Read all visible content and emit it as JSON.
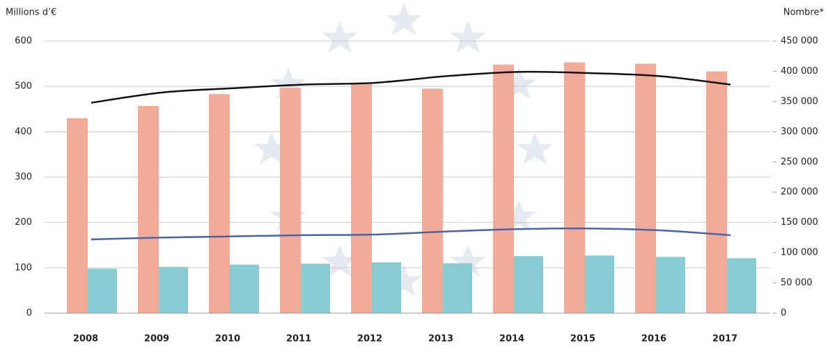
{
  "chart_data": {
    "type": "bar-line",
    "ylabel": "Millions d’€",
    "y2label": "Nombre*",
    "categories": [
      "2008",
      "2009",
      "2010",
      "2011",
      "2012",
      "2013",
      "2014",
      "2015",
      "2016",
      "2017"
    ],
    "ylim": [
      0,
      600
    ],
    "yticks": [
      0,
      100,
      200,
      300,
      400,
      500,
      600
    ],
    "y2lim": [
      0,
      450000
    ],
    "y2ticks": [
      {
        "value": 0,
        "label": "0"
      },
      {
        "value": 50000,
        "label": "50 000"
      },
      {
        "value": 100000,
        "label": "100 000"
      },
      {
        "value": 150000,
        "label": "150 000"
      },
      {
        "value": 200000,
        "label": "200 000"
      },
      {
        "value": 250000,
        "label": "250 000"
      },
      {
        "value": 300000,
        "label": "300 000"
      },
      {
        "value": 350000,
        "label": "350 000"
      },
      {
        "value": 400000,
        "label": "400 000"
      },
      {
        "value": 450000,
        "label": "450 000"
      }
    ],
    "grid": true,
    "series": [
      {
        "type": "bar",
        "color": "#f2ab99",
        "values": [
          430,
          457,
          483,
          497,
          505,
          495,
          548,
          553,
          550,
          533
        ]
      },
      {
        "type": "bar",
        "color": "#89cbd3",
        "values": [
          98,
          102,
          107,
          109,
          112,
          110,
          126,
          127,
          124,
          121
        ]
      },
      {
        "type": "line",
        "axis": "y2",
        "color": "#111111",
        "values": [
          348000,
          365000,
          372000,
          378000,
          381000,
          392000,
          399000,
          397000,
          392000,
          378000
        ]
      },
      {
        "type": "line",
        "axis": "y2",
        "color": "#4a62a6",
        "values": [
          122000,
          125000,
          127000,
          129000,
          130000,
          135000,
          139000,
          140000,
          137000,
          129000
        ]
      }
    ]
  }
}
